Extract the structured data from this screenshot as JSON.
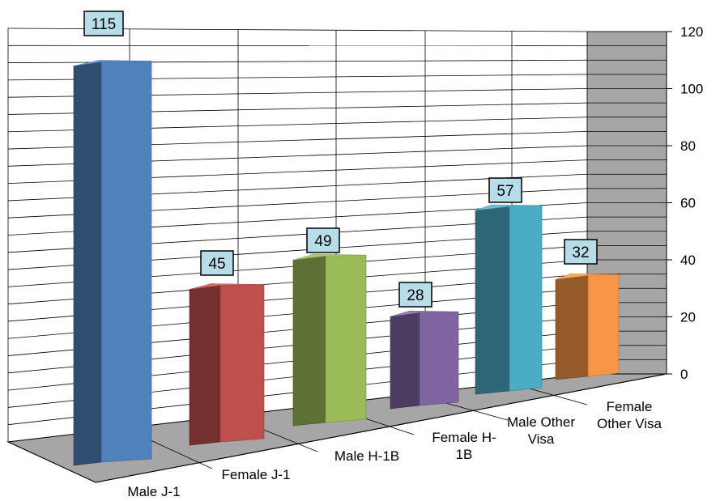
{
  "chart_data": {
    "type": "bar",
    "title": "",
    "xlabel": "",
    "ylabel": "",
    "categories": [
      [
        "Male J-1"
      ],
      [
        "Female J-1"
      ],
      [
        "Male H-1B"
      ],
      [
        "Female H-",
        "1B"
      ],
      [
        "Male Other",
        "Visa"
      ],
      [
        "Female",
        "Other Visa"
      ]
    ],
    "values": [
      115,
      45,
      49,
      28,
      57,
      32
    ],
    "ylim": [
      0,
      120
    ],
    "yticks": [
      "0",
      "20",
      "40",
      "60",
      "80",
      "100",
      "120"
    ],
    "grid": true,
    "three_d": true,
    "colors": [
      "#4f81bd",
      "#c0504d",
      "#9bbb59",
      "#8064a2",
      "#4bacc6",
      "#f79646"
    ],
    "data_label_fill": "#b7dee8"
  }
}
